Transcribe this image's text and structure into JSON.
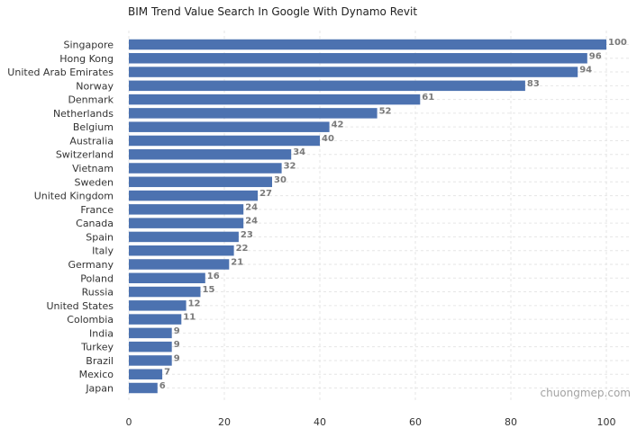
{
  "chart_data": {
    "type": "bar",
    "orientation": "horizontal",
    "title": "BIM Trend Value Search In Google With Dynamo Revit",
    "xlabel": "",
    "ylabel": "",
    "xlim": [
      0,
      105
    ],
    "x_ticks": [
      0,
      20,
      40,
      60,
      80,
      100
    ],
    "grid": true,
    "bar_color": "#4c72b0",
    "categories": [
      "Singapore",
      "Hong Kong",
      "United Arab Emirates",
      "Norway",
      "Denmark",
      "Netherlands",
      "Belgium",
      "Australia",
      "Switzerland",
      "Vietnam",
      "Sweden",
      "United Kingdom",
      "France",
      "Canada",
      "Spain",
      "Italy",
      "Germany",
      "Poland",
      "Russia",
      "United States",
      "Colombia",
      "India",
      "Turkey",
      "Brazil",
      "Mexico",
      "Japan"
    ],
    "values": [
      100,
      96,
      94,
      83,
      61,
      52,
      42,
      40,
      34,
      32,
      30,
      27,
      24,
      24,
      23,
      22,
      21,
      16,
      15,
      12,
      11,
      9,
      9,
      9,
      7,
      6
    ]
  },
  "watermark": "chuongmep.com"
}
